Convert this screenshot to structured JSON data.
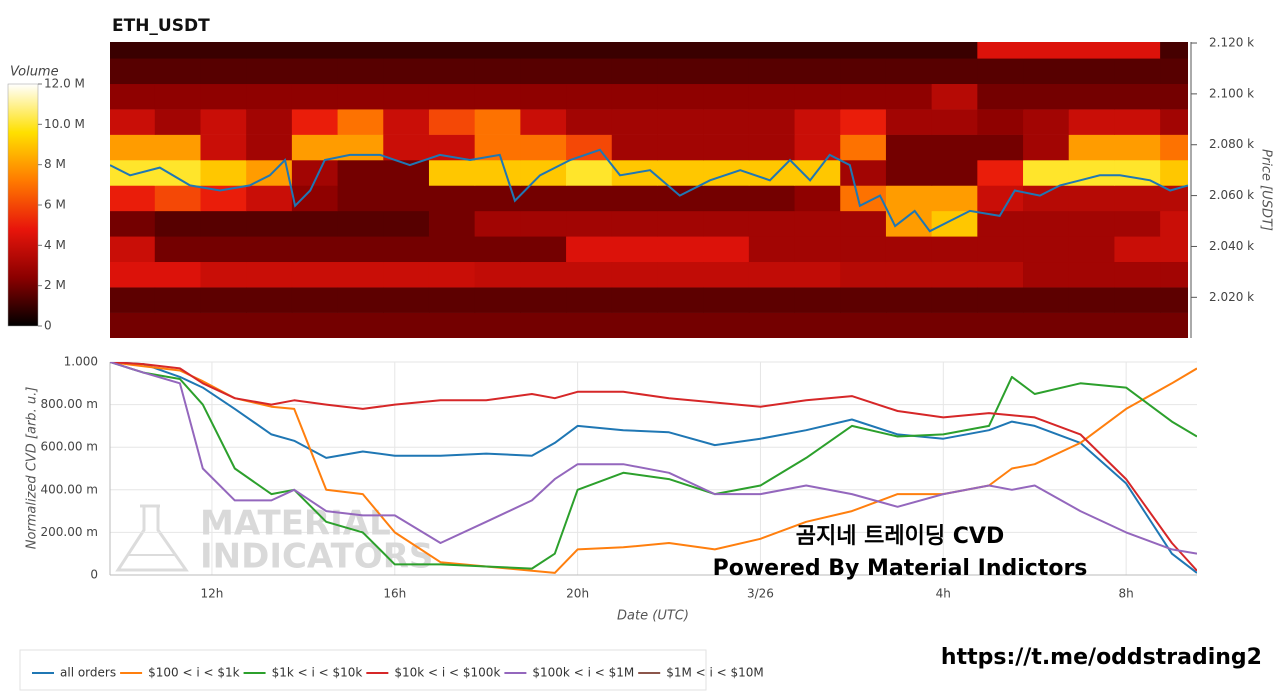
{
  "chart_data": [
    {
      "type": "heatmap",
      "title": "ETH_USDT",
      "ylabel": "Price [USDT]",
      "xlim": [
        9.77,
        33.36
      ],
      "ylim": [
        2004,
        2120.4
      ],
      "yticks": [
        {
          "value": 2020,
          "label": "2.020 k"
        },
        {
          "value": 2040,
          "label": "2.040 k"
        },
        {
          "value": 2060,
          "label": "2.060 k"
        },
        {
          "value": 2080,
          "label": "2.080 k"
        },
        {
          "value": 2100,
          "label": "2.100 k"
        },
        {
          "value": 2120,
          "label": "2.120 k"
        }
      ],
      "x_bins": [
        9.75,
        10.75,
        11.75,
        12.75,
        13.75,
        14.75,
        15.75,
        16.75,
        17.75,
        18.75,
        19.75,
        20.75,
        21.75,
        22.75,
        23.75,
        24.75,
        25.75,
        26.75,
        27.75,
        28.75,
        29.75,
        30.75,
        31.75,
        32.75,
        33.75
      ],
      "price_bins": [
        2004,
        2014,
        2024,
        2034,
        2044,
        2054,
        2064,
        2074,
        2084,
        2094,
        2104,
        2114,
        2124
      ],
      "values": [
        [
          2000000,
          2000000,
          2000000,
          2000000,
          2000000,
          2000000,
          2000000,
          2000000,
          2000000,
          2000000,
          2000000,
          2000000,
          2000000,
          2000000,
          2000000,
          2000000,
          2000000,
          2000000,
          2000000,
          2000000,
          2000000,
          2000000,
          2000000,
          2000000
        ],
        [
          1600000,
          1600000,
          1600000,
          1600000,
          1600000,
          1600000,
          1600000,
          1600000,
          1600000,
          1600000,
          1600000,
          1600000,
          1600000,
          1600000,
          1600000,
          1600000,
          1600000,
          1600000,
          1600000,
          1600000,
          1600000,
          1600000,
          1600000,
          1600000
        ],
        [
          4500000,
          4500000,
          4000000,
          4000000,
          4000000,
          4000000,
          4000000,
          4000000,
          3800000,
          3800000,
          3800000,
          3800000,
          3800000,
          3800000,
          3800000,
          3800000,
          3500000,
          3500000,
          3500000,
          3500000,
          3000000,
          3000000,
          3000000,
          3000000
        ],
        [
          4000000,
          2000000,
          2000000,
          2000000,
          2000000,
          2000000,
          2000000,
          2000000,
          2000000,
          2000000,
          4500000,
          4500000,
          4500000,
          4500000,
          3000000,
          3000000,
          3000000,
          3000000,
          3000000,
          3000000,
          3000000,
          3000000,
          4000000,
          4000000
        ],
        [
          2000000,
          1500000,
          1500000,
          1500000,
          1500000,
          1500000,
          1500000,
          2000000,
          3000000,
          3000000,
          3000000,
          3000000,
          3000000,
          3000000,
          3000000,
          3000000,
          3000000,
          8000000,
          9000000,
          3000000,
          3000000,
          3000000,
          3000000,
          4000000
        ],
        [
          5000000,
          6000000,
          5000000,
          4000000,
          2500000,
          2000000,
          2000000,
          2000000,
          2000000,
          2000000,
          2000000,
          2000000,
          2000000,
          2000000,
          2000000,
          2500000,
          7000000,
          8000000,
          8000000,
          4000000,
          3500000,
          3500000,
          3500000,
          3500000
        ],
        [
          10000000,
          10000000,
          9000000,
          8000000,
          3000000,
          2000000,
          2000000,
          9000000,
          9000000,
          9000000,
          10000000,
          9000000,
          9000000,
          9000000,
          9000000,
          9000000,
          3000000,
          2000000,
          2000000,
          5000000,
          10000000,
          10000000,
          10000000,
          9000000
        ],
        [
          8000000,
          8000000,
          4000000,
          3000000,
          8000000,
          8000000,
          4000000,
          4000000,
          7000000,
          7000000,
          6000000,
          3000000,
          3000000,
          3000000,
          3000000,
          4000000,
          7000000,
          2000000,
          2000000,
          2000000,
          3000000,
          8000000,
          8000000,
          7000000
        ],
        [
          4000000,
          3000000,
          4000000,
          3000000,
          5000000,
          7000000,
          4000000,
          6000000,
          7000000,
          4000000,
          3000000,
          3000000,
          3000000,
          3000000,
          3000000,
          4000000,
          5000000,
          3000000,
          3000000,
          2500000,
          3000000,
          4000000,
          4000000,
          3000000
        ],
        [
          2500000,
          2500000,
          2500000,
          2500000,
          2500000,
          2500000,
          2500000,
          2500000,
          2500000,
          2500000,
          2500000,
          2500000,
          2500000,
          2500000,
          2500000,
          2500000,
          2500000,
          2500000,
          3500000,
          2000000,
          2000000,
          2000000,
          2000000,
          2000000
        ],
        [
          1500000,
          1500000,
          1500000,
          1500000,
          1500000,
          1500000,
          1500000,
          1500000,
          1500000,
          1500000,
          1500000,
          1500000,
          1500000,
          1500000,
          1500000,
          1500000,
          1500000,
          1500000,
          1500000,
          1500000,
          1500000,
          1500000,
          1500000,
          1500000
        ],
        [
          1000000,
          1000000,
          1000000,
          1000000,
          1000000,
          1000000,
          1000000,
          1000000,
          1000000,
          1000000,
          1000000,
          1000000,
          1000000,
          1000000,
          1000000,
          1000000,
          1000000,
          1000000,
          1000000,
          4500000,
          4500000,
          4500000,
          4500000,
          1200000
        ]
      ],
      "colormap": [
        "#000000",
        "#8b0000",
        "#e8150b",
        "#ff7a00",
        "#ffe000",
        "#ffffff"
      ],
      "colorbar": {
        "title": "Volume",
        "lim": [
          0,
          12000000
        ],
        "ticks": [
          0,
          {
            "value": 2000000,
            "label": "2 M"
          },
          {
            "value": 4000000,
            "label": "4 M"
          },
          {
            "value": 6000000,
            "label": "6 M"
          },
          {
            "value": 8000000,
            "label": "8 M"
          },
          {
            "value": 10000000,
            "label": "10.0 M"
          },
          {
            "value": 12000000,
            "label": "12.0 M"
          }
        ]
      },
      "price_line": {
        "color": "#1f77b4",
        "x": [
          9.77,
          10.21,
          10.86,
          11.52,
          12.18,
          12.83,
          13.27,
          13.6,
          13.82,
          14.15,
          14.47,
          15.02,
          15.68,
          16.33,
          16.99,
          17.65,
          18.3,
          18.63,
          19.18,
          19.84,
          20.49,
          20.93,
          21.59,
          22.24,
          22.9,
          23.56,
          24.21,
          24.65,
          25.09,
          25.52,
          25.96,
          26.18,
          26.62,
          26.95,
          27.38,
          27.71,
          28.15,
          28.59,
          29.24,
          29.57,
          30.12,
          30.56,
          31.0,
          31.43,
          31.87,
          32.53,
          32.97,
          33.36
        ],
        "values": [
          2072,
          2068,
          2071,
          2064,
          2062,
          2064,
          2068,
          2074,
          2056,
          2062,
          2074,
          2076,
          2076,
          2072,
          2076,
          2074,
          2076,
          2058,
          2068,
          2074,
          2078,
          2068,
          2070,
          2060,
          2066,
          2070,
          2066,
          2074,
          2066,
          2076,
          2072,
          2056,
          2060,
          2048,
          2054,
          2046,
          2050,
          2054,
          2052,
          2062,
          2060,
          2064,
          2066,
          2068,
          2068,
          2066,
          2062,
          2064
        ]
      }
    },
    {
      "type": "line",
      "xlabel": "Date (UTC)",
      "ylabel": "Normalized CVD [arb. u.]",
      "grid": true,
      "legend": "below",
      "xlim": [
        9.77,
        33.55
      ],
      "ylim": [
        0,
        1
      ],
      "xticks": [
        {
          "value": 12,
          "label": "12h"
        },
        {
          "value": 16,
          "label": "16h"
        },
        {
          "value": 20,
          "label": "20h"
        },
        {
          "value": 24,
          "label": "3/26"
        },
        {
          "value": 28,
          "label": "4h"
        },
        {
          "value": 32,
          "label": "8h"
        }
      ],
      "yticks": [
        0,
        {
          "value": 0.2,
          "label": "200.00 m"
        },
        {
          "value": 0.4,
          "label": "400.00 m"
        },
        {
          "value": 0.6,
          "label": "600.00 m"
        },
        {
          "value": 0.8,
          "label": "800.00 m"
        },
        {
          "value": 1,
          "label": "1.000"
        }
      ],
      "x": [
        9.77,
        10.5,
        11.3,
        11.8,
        12.5,
        13.3,
        13.8,
        14.5,
        15.3,
        16,
        17,
        18,
        19,
        19.5,
        20,
        21,
        22,
        23,
        24,
        25,
        26,
        27,
        28,
        29,
        29.5,
        30,
        31,
        32,
        33,
        33.55
      ],
      "series": [
        {
          "name": "all orders",
          "color": "#1f77b4",
          "values": [
            1.0,
            0.99,
            0.93,
            0.88,
            0.78,
            0.66,
            0.63,
            0.55,
            0.58,
            0.56,
            0.56,
            0.57,
            0.56,
            0.62,
            0.7,
            0.68,
            0.67,
            0.61,
            0.64,
            0.68,
            0.73,
            0.66,
            0.64,
            0.68,
            0.72,
            0.7,
            0.62,
            0.43,
            0.1,
            0.01
          ]
        },
        {
          "name": "$100 < i < $1k",
          "color": "#ff7f0e",
          "values": [
            1.0,
            0.98,
            0.96,
            0.91,
            0.83,
            0.79,
            0.78,
            0.4,
            0.38,
            0.2,
            0.06,
            0.04,
            0.02,
            0.01,
            0.12,
            0.13,
            0.15,
            0.12,
            0.17,
            0.25,
            0.3,
            0.38,
            0.38,
            0.42,
            0.5,
            0.52,
            0.62,
            0.78,
            0.9,
            0.97
          ]
        },
        {
          "name": "$1k < i < $10k",
          "color": "#2ca02c",
          "values": [
            1.0,
            0.95,
            0.92,
            0.8,
            0.5,
            0.38,
            0.4,
            0.25,
            0.2,
            0.05,
            0.05,
            0.04,
            0.03,
            0.1,
            0.4,
            0.48,
            0.45,
            0.38,
            0.42,
            0.55,
            0.7,
            0.65,
            0.66,
            0.7,
            0.93,
            0.85,
            0.9,
            0.88,
            0.72,
            0.65
          ]
        },
        {
          "name": "$10k < i < $100k",
          "color": "#d62728",
          "values": [
            1.0,
            0.99,
            0.97,
            0.9,
            0.83,
            0.8,
            0.82,
            0.8,
            0.78,
            0.8,
            0.82,
            0.82,
            0.85,
            0.83,
            0.86,
            0.86,
            0.83,
            0.81,
            0.79,
            0.82,
            0.84,
            0.77,
            0.74,
            0.76,
            0.75,
            0.74,
            0.66,
            0.45,
            0.15,
            0.02
          ]
        },
        {
          "name": "$100k < i < $1M",
          "color": "#9467bd",
          "values": [
            1.0,
            0.95,
            0.9,
            0.5,
            0.35,
            0.35,
            0.4,
            0.3,
            0.28,
            0.28,
            0.15,
            0.25,
            0.35,
            0.45,
            0.52,
            0.52,
            0.48,
            0.38,
            0.38,
            0.42,
            0.38,
            0.32,
            0.38,
            0.42,
            0.4,
            0.42,
            0.3,
            0.2,
            0.12,
            0.1
          ]
        },
        {
          "name": "$1M < i < $10M",
          "color": "#8c564b",
          "values": [
            null,
            null,
            null,
            null,
            null,
            null,
            null,
            null,
            null,
            null,
            null,
            null,
            null,
            null,
            null,
            null,
            null,
            null,
            null,
            null,
            null,
            null,
            null,
            null,
            null,
            null,
            null,
            null,
            null,
            null
          ]
        }
      ],
      "watermark": [
        "MATERIAL",
        "INDICATORS"
      ],
      "annotations": [
        "곰지네 트레이딩 CVD",
        "Powered By Material Indictors"
      ]
    }
  ],
  "caption": "https://t.me/oddstrading2"
}
